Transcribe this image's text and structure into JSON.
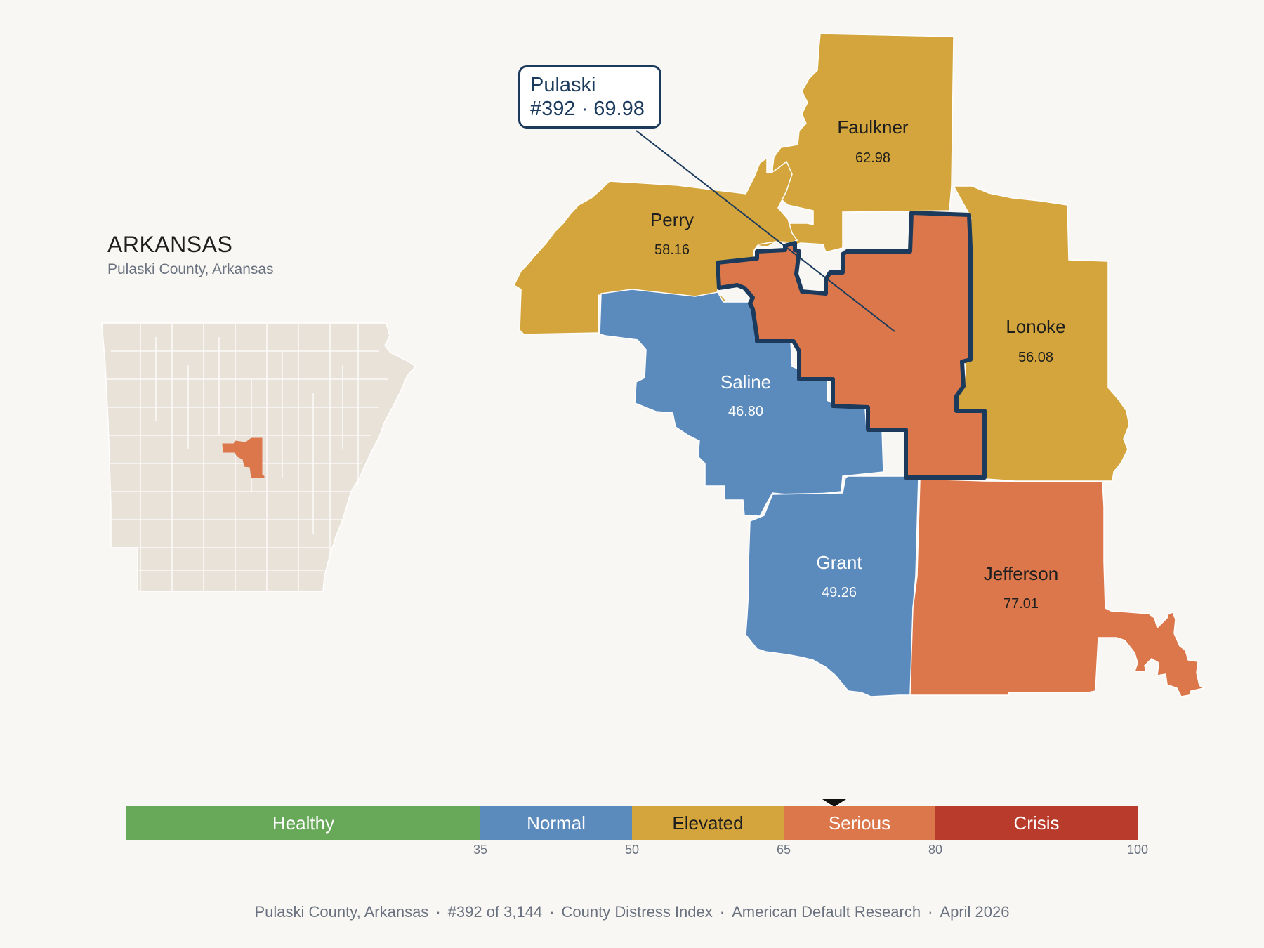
{
  "header": {
    "state_title": "ARKANSAS",
    "subtitle": "Pulaski County, Arkansas"
  },
  "callout": {
    "line1": "Pulaski",
    "line2": "#392 · 69.98"
  },
  "counties": [
    {
      "name": "Faulkner",
      "score": "62.98",
      "category": "Elevated"
    },
    {
      "name": "Perry",
      "score": "58.16",
      "category": "Elevated"
    },
    {
      "name": "Lonoke",
      "score": "56.08",
      "category": "Elevated"
    },
    {
      "name": "Saline",
      "score": "46.80",
      "category": "Normal"
    },
    {
      "name": "Grant",
      "score": "49.26",
      "category": "Normal"
    },
    {
      "name": "Jefferson",
      "score": "77.01",
      "category": "Serious"
    },
    {
      "name": "Pulaski",
      "score": "69.98",
      "category": "Serious",
      "selected": true
    }
  ],
  "scale": {
    "min": 0,
    "max": 100,
    "marker_value": 69.98,
    "segments": [
      {
        "label": "Healthy",
        "from": 0,
        "to": 35,
        "color": "#67a859"
      },
      {
        "label": "Normal",
        "from": 35,
        "to": 50,
        "color": "#5b8abd"
      },
      {
        "label": "Elevated",
        "from": 50,
        "to": 65,
        "color": "#d3a53c"
      },
      {
        "label": "Serious",
        "from": 65,
        "to": 80,
        "color": "#db774b"
      },
      {
        "label": "Crisis",
        "from": 80,
        "to": 100,
        "color": "#b93b2b"
      }
    ],
    "ticks": [
      "35",
      "50",
      "65",
      "80",
      "100"
    ]
  },
  "colors": {
    "elevated": "#d3a53c",
    "normal": "#5b8abd",
    "serious": "#db774b",
    "locator_base": "#e8e2d8",
    "outline": "#1b3a5c"
  },
  "footer": {
    "county": "Pulaski County, Arkansas",
    "rank": "#392 of 3,144",
    "index": "County Distress Index",
    "source": "American Default Research",
    "date": "April 2026"
  }
}
